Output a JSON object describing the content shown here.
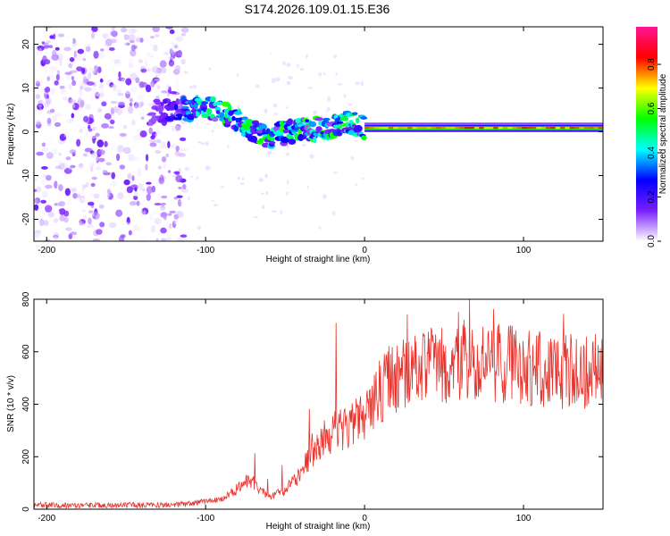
{
  "title": "S174.2026.109.01.15.E36",
  "chart_data": [
    {
      "type": "heatmap",
      "xlabel": "Height of straight line (km)",
      "ylabel": "Frequency (Hz)",
      "xlim": [
        -208,
        150
      ],
      "ylim": [
        -25,
        24
      ],
      "xticks": [
        -200,
        -100,
        0,
        100
      ],
      "yticks": [
        -20,
        -10,
        0,
        10,
        20
      ],
      "colorbar": {
        "label": "Normalized spectral amplitude",
        "range": [
          0,
          0.97
        ],
        "ticks": [
          0.0,
          0.2,
          0.4,
          0.6,
          0.8
        ],
        "colormap": [
          "#ffffff",
          "#7a1fff",
          "#0000ff",
          "#00ffff",
          "#00ff00",
          "#ffff00",
          "#ff0000",
          "#ff1493"
        ]
      },
      "ridge": {
        "description_points_x": [
          -135,
          -120,
          -105,
          -95,
          -85,
          -78,
          -70,
          -62,
          -55,
          -48,
          -40,
          -33,
          -25,
          -18,
          -10,
          0,
          20,
          150
        ],
        "description_points_y": [
          4.5,
          5,
          5.5,
          5,
          3.5,
          2,
          0.5,
          -1,
          -0.5,
          0,
          0.5,
          0.5,
          1,
          1.5,
          2,
          1,
          0.8,
          0.8
        ]
      }
    },
    {
      "type": "line",
      "xlabel": "Height of straight line (km)",
      "ylabel": "SNR (10 * v/v)",
      "xlim": [
        -208,
        150
      ],
      "ylim": [
        0,
        800
      ],
      "xticks": [
        -200,
        -100,
        0,
        100
      ],
      "yticks": [
        0,
        200,
        400,
        600,
        800
      ],
      "series": [
        {
          "name": "SNR",
          "color": "#e8322c",
          "envelope_x": [
            -208,
            -130,
            -110,
            -90,
            -80,
            -72,
            -68,
            -60,
            -50,
            -40,
            -30,
            -22,
            -10,
            0,
            10,
            20,
            40,
            60,
            80,
            100,
            120,
            150
          ],
          "envelope_y": [
            15,
            15,
            20,
            40,
            80,
            120,
            90,
            50,
            70,
            150,
            240,
            300,
            320,
            380,
            460,
            520,
            560,
            580,
            570,
            560,
            540,
            540
          ]
        }
      ]
    }
  ]
}
